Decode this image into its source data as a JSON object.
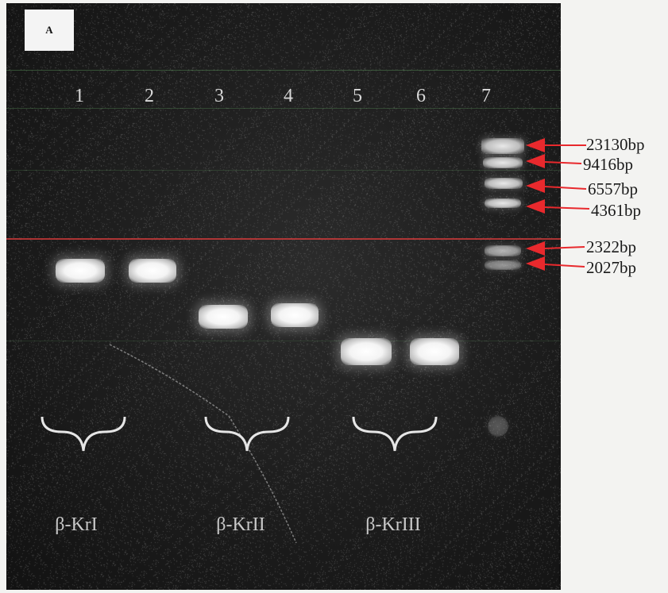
{
  "panel_label": "A",
  "lane_numbers": [
    "1",
    "2",
    "3",
    "4",
    "5",
    "6",
    "7"
  ],
  "group_labels": [
    "β-KrI",
    "β-KrII",
    "β-KrIII"
  ],
  "marker_labels": [
    "23130bp",
    "9416bp",
    "6557bp",
    "4361bp",
    "2322bp",
    "2027bp"
  ],
  "colors": {
    "gel_background": "#1c1c1c",
    "band": "#ffffff",
    "arrow": "#e8292d",
    "label_text": "#1a1a1a"
  }
}
